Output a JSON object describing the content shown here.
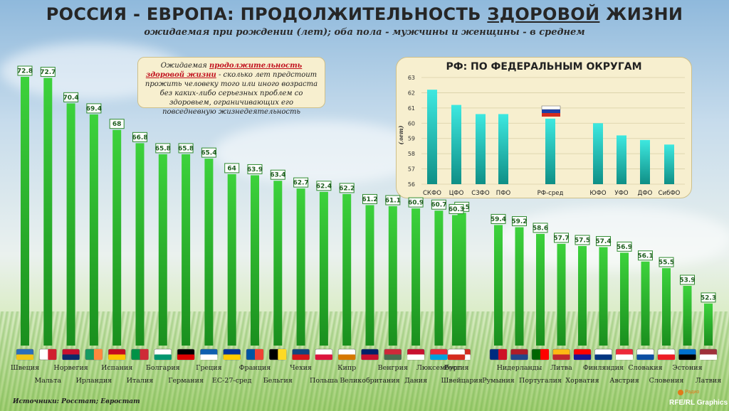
{
  "header": {
    "title_prefix": "РОССИЯ - ЕВРОПА: ПРОДОЛЖИТЕЛЬНОСТЬ ",
    "title_underlined": "ЗДОРОВОЙ",
    "title_suffix": " ЖИЗНИ",
    "subtitle": "ожидаемая при рождении (лет); оба пола - мужчины и женщины - в среднем"
  },
  "note": {
    "lead": "Ожидаемая ",
    "highlight": "продолжительность здоровой жизни",
    "body": " - сколько лет предстоит прожить человеку того или иного возраста  без каких-либо серьезных проблем со здоровьем, ограничивающих его повседневную жизнедеятельность"
  },
  "footer": {
    "source": "Источники: Росстат; Евростат",
    "brand": "RFE/RL Graphics",
    "radio_label": "Радио"
  },
  "colors": {
    "bar_top": "#3dd23c",
    "bar_bottom": "#1a8f1e",
    "inset_top": "#3ee8e0",
    "inset_bottom": "#0f8f86"
  },
  "chart_data": [
    {
      "type": "bar",
      "title": "",
      "categories": [
        "Швеция",
        "Мальта",
        "Норвегия",
        "Ирландия",
        "Испания",
        "Италия",
        "Болгария",
        "Германия",
        "Греция",
        "ЕС-27-сред",
        "Франция",
        "Бельгия",
        "Чехия",
        "Польша",
        "Кипр",
        "Великобритания",
        "Венгрия",
        "Дания",
        "Люксембург",
        "Швейцария",
        "Россия",
        "Румыния",
        "Нидерланды",
        "Португалия",
        "Литва",
        "Хорватия",
        "Финляндия",
        "Австрия",
        "Словакия",
        "Словения",
        "Эстония",
        "Латвия"
      ],
      "values": [
        72.8,
        72.7,
        70.4,
        69.4,
        68,
        66.8,
        65.8,
        65.8,
        65.4,
        64,
        63.9,
        63.4,
        62.7,
        62.4,
        62.2,
        61.2,
        61.1,
        60.9,
        60.7,
        60.5,
        60.3,
        59.4,
        59.2,
        58.6,
        57.7,
        57.5,
        57.4,
        56.9,
        56.1,
        55.5,
        53.9,
        52.3
      ],
      "value_labels": [
        "72.8",
        "72.7",
        "70.4",
        "69.4",
        "68",
        "66.8",
        "65.8",
        "65.8",
        "65.4",
        "64",
        "63.9",
        "63.4",
        "62.7",
        "62.4",
        "62.2",
        "61.2",
        "61.1",
        "60.9",
        "60.7",
        "60.5",
        "60.3",
        "59.4",
        "59.2",
        "58.6",
        "57.7",
        "57.5",
        "57.4",
        "56.9",
        "56.1",
        "55.5",
        "53.9",
        "52.3"
      ],
      "flags": [
        [
          "#2a6ebb",
          "#f2c617",
          "h"
        ],
        [
          "#ffffff",
          "#d01f2f",
          "v"
        ],
        [
          "#c8102e",
          "#0b2a6b",
          "h"
        ],
        [
          "#169b62",
          "#ff883e",
          "v"
        ],
        [
          "#c60b1e",
          "#ffc400",
          "h"
        ],
        [
          "#009246",
          "#ce2b37",
          "v"
        ],
        [
          "#ffffff",
          "#00966e",
          "h"
        ],
        [
          "#000000",
          "#dd0000",
          "h"
        ],
        [
          "#0d5eaf",
          "#ffffff",
          "h"
        ],
        [
          "#003399",
          "#ffcc00",
          "h"
        ],
        [
          "#0055a4",
          "#ef4135",
          "v"
        ],
        [
          "#000000",
          "#fdda24",
          "v"
        ],
        [
          "#11457e",
          "#d7141a",
          "h"
        ],
        [
          "#ffffff",
          "#dc143c",
          "h"
        ],
        [
          "#ffffff",
          "#d57800",
          "h"
        ],
        [
          "#012169",
          "#c8102e",
          "h"
        ],
        [
          "#ce2939",
          "#477050",
          "h"
        ],
        [
          "#c8102e",
          "#ffffff",
          "h"
        ],
        [
          "#ed2939",
          "#00a1de",
          "h"
        ],
        [
          "#d52b1e",
          "#ffffff",
          "h"
        ],
        [
          "#ffffff",
          "#d52b1e",
          "h"
        ],
        [
          "#002b7f",
          "#ce1126",
          "v"
        ],
        [
          "#ae1c28",
          "#21468b",
          "h"
        ],
        [
          "#006600",
          "#ff0000",
          "v"
        ],
        [
          "#fdb913",
          "#c1272d",
          "h"
        ],
        [
          "#ff0000",
          "#171796",
          "h"
        ],
        [
          "#ffffff",
          "#003580",
          "h"
        ],
        [
          "#ed2939",
          "#ffffff",
          "h"
        ],
        [
          "#ffffff",
          "#0b4ea2",
          "h"
        ],
        [
          "#ffffff",
          "#ed1c24",
          "h"
        ],
        [
          "#0072ce",
          "#000000",
          "h"
        ],
        [
          "#9e3039",
          "#ffffff",
          "h"
        ]
      ]
    },
    {
      "type": "bar",
      "title": "РФ: ПО ФЕДЕРАЛЬНЫМ ОКРУГАМ",
      "ylabel": "(лет)",
      "ylim": [
        56,
        63
      ],
      "yticks": [
        "56",
        "57",
        "58",
        "59",
        "60",
        "61",
        "62",
        "63"
      ],
      "categories": [
        "СКФО",
        "ЦФО",
        "СЗФО",
        "ПФО",
        "РФ-сред",
        "ЮФО",
        "УФО",
        "ДФО",
        "СибФО"
      ],
      "values": [
        62.2,
        61.2,
        60.6,
        60.6,
        60.3,
        60.0,
        59.2,
        58.9,
        58.6
      ],
      "grid": true
    }
  ]
}
